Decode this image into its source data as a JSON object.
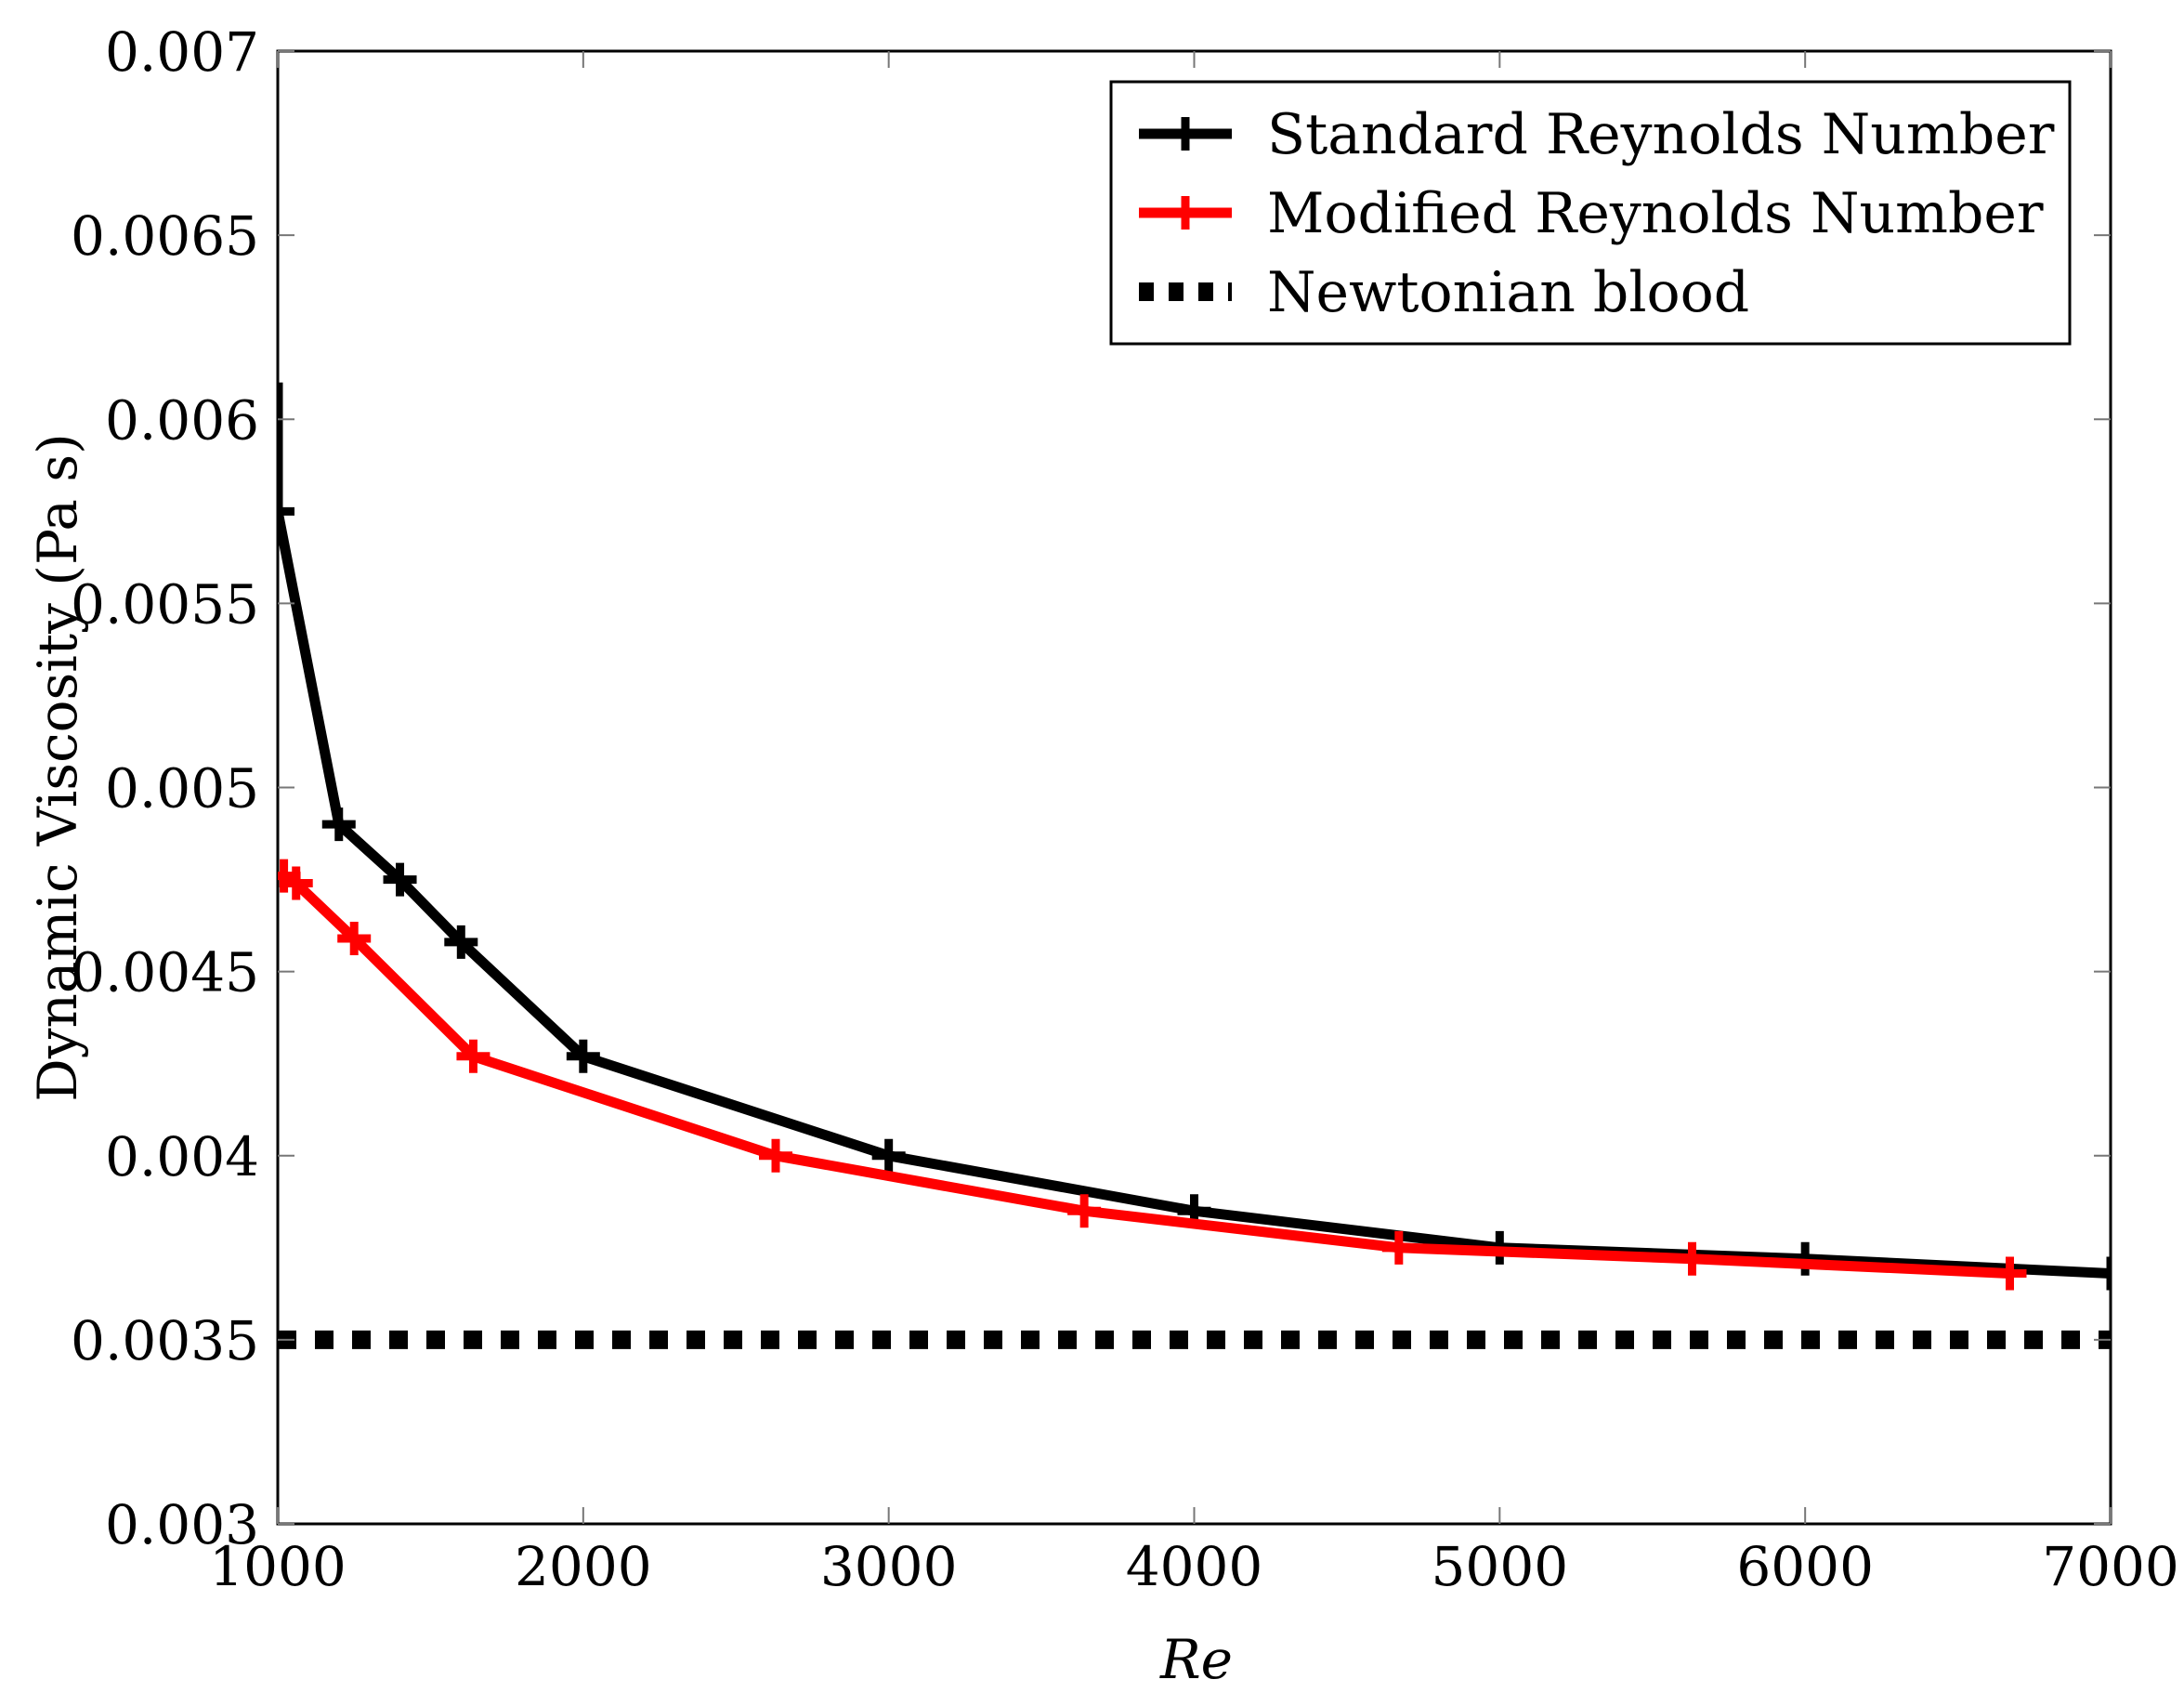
{
  "chart_data": {
    "type": "line",
    "xlabel": "Re",
    "ylabel": "Dynamic Viscosity (Pa s)",
    "xlim": [
      1000,
      7000
    ],
    "ylim": [
      0.003,
      0.007
    ],
    "xticks": [
      1000,
      2000,
      3000,
      4000,
      5000,
      6000,
      7000
    ],
    "xtick_labels": [
      "1000",
      "2000",
      "3000",
      "4000",
      "5000",
      "6000",
      "7000"
    ],
    "yticks": [
      0.003,
      0.0035,
      0.004,
      0.0045,
      0.005,
      0.0055,
      0.006,
      0.0065,
      0.007
    ],
    "ytick_labels": [
      "0.003",
      "0.0035",
      "0.004",
      "0.0045",
      "0.005",
      "0.0055",
      "0.006",
      "0.0065",
      "0.007"
    ],
    "legend_position": "top-right",
    "series": [
      {
        "name": "Standard Reynolds Number",
        "color": "#000000",
        "style": "solid",
        "marker": "plus",
        "x": [
          1000,
          1000,
          1200,
          1400,
          1600,
          2000,
          3000,
          4000,
          5000,
          6000,
          7000
        ],
        "y": [
          0.0061,
          0.00575,
          0.0049,
          0.00475,
          0.00458,
          0.00427,
          0.004,
          0.00385,
          0.00375,
          0.00372,
          0.00368
        ],
        "marker_x": [
          1000,
          1200,
          1400,
          1600,
          2000,
          3000,
          4000,
          5000,
          6000,
          7000
        ],
        "marker_y": [
          0.00575,
          0.0049,
          0.00475,
          0.00458,
          0.00427,
          0.004,
          0.00385,
          0.00375,
          0.00372,
          0.00368
        ]
      },
      {
        "name": "Modified Reynolds Number",
        "color": "#ff0000",
        "style": "solid",
        "marker": "plus",
        "x": [
          1020,
          1060,
          1250,
          1640,
          2630,
          3640,
          4670,
          5630,
          6670
        ],
        "y": [
          0.00476,
          0.00474,
          0.00459,
          0.00427,
          0.004,
          0.00385,
          0.00375,
          0.00372,
          0.00368
        ],
        "marker_x": [
          1020,
          1060,
          1250,
          1640,
          2630,
          3640,
          4670,
          5630,
          6670
        ],
        "marker_y": [
          0.00476,
          0.00474,
          0.00459,
          0.00427,
          0.004,
          0.00385,
          0.00375,
          0.00372,
          0.00368
        ]
      },
      {
        "name": "Newtonian blood",
        "color": "#000000",
        "style": "dotted",
        "marker": "none",
        "x": [
          1000,
          7000
        ],
        "y": [
          0.0035,
          0.0035
        ],
        "marker_x": [],
        "marker_y": []
      }
    ]
  }
}
